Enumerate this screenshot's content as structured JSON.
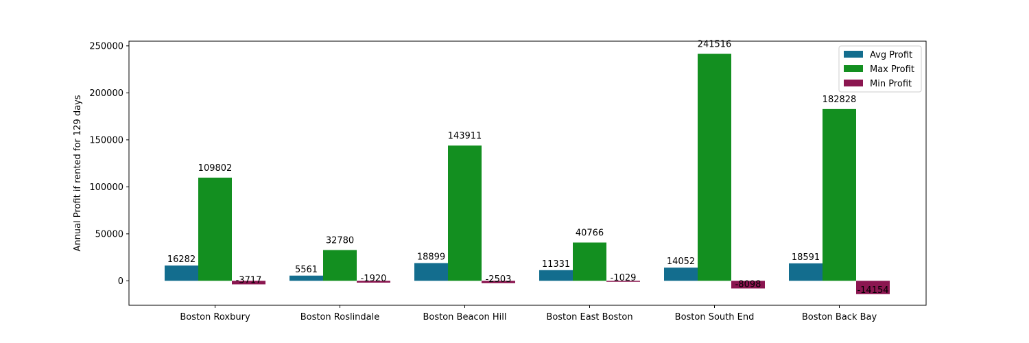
{
  "chart_data": {
    "type": "bar",
    "categories": [
      "Boston Roxbury",
      "Boston Roslindale",
      "Boston Beacon Hill",
      "Boston East Boston",
      "Boston South End",
      "Boston Back Bay"
    ],
    "series": [
      {
        "name": "Avg Profit",
        "color": "#136d8e",
        "values": [
          16282,
          5561,
          18899,
          11331,
          14052,
          18591
        ]
      },
      {
        "name": "Max Profit",
        "color": "#138f20",
        "values": [
          109802,
          32780,
          143911,
          40766,
          241516,
          182828
        ]
      },
      {
        "name": "Min Profit",
        "color": "#8b1650",
        "values": [
          -3717,
          -1920,
          -2503,
          -1029,
          -8098,
          -14154
        ]
      }
    ],
    "title": "",
    "xlabel": "",
    "ylabel": "Annual Profit if rented for 129 days",
    "ylim": [
      -26000,
      255000
    ],
    "yticks": [
      0,
      50000,
      100000,
      150000,
      200000,
      250000
    ],
    "legend_position": "top-right",
    "grid": false
  }
}
